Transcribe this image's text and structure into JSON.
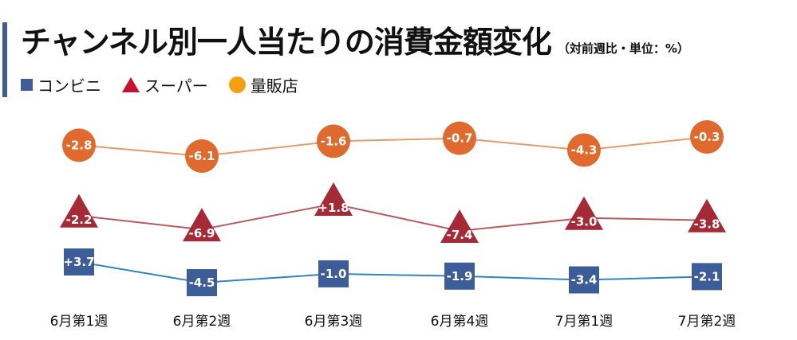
{
  "header": {
    "title": "チャンネル別一人当たりの消費金額変化",
    "note": "（対前週比・単位：%）"
  },
  "colors": {
    "accent_bar": "#3f5c93"
  },
  "chart_data": {
    "type": "line",
    "categories": [
      "6月第1週",
      "6月第2週",
      "6月第3週",
      "6月第4週",
      "7月第1週",
      "7月第2週"
    ],
    "series": [
      {
        "name": "量販店",
        "marker": "circle",
        "marker_color": "#e06a2e",
        "legend_color": "#f5a00f",
        "line_color": "#e79b6a",
        "values": [
          -2.8,
          -6.1,
          -1.6,
          -0.7,
          -4.3,
          -0.3
        ],
        "labels": [
          "-2.8",
          "-6.1",
          "-1.6",
          "-0.7",
          "-4.3",
          "-0.3"
        ]
      },
      {
        "name": "スーパー",
        "marker": "triangle",
        "marker_color": "#a52a35",
        "legend_color": "#c8102e",
        "line_color": "#b85a5f",
        "values": [
          -2.2,
          -6.9,
          1.8,
          -7.4,
          -3.0,
          -3.8
        ],
        "labels": [
          "-2.2",
          "-6.9",
          "+1.8",
          "-7.4",
          "-3.0",
          "-3.8"
        ]
      },
      {
        "name": "コンビニ",
        "marker": "square",
        "marker_color": "#3d5d98",
        "legend_color": "#3d5d98",
        "line_color": "#2e86c1",
        "values": [
          3.7,
          -4.5,
          -1.0,
          -1.9,
          -3.4,
          -2.1
        ],
        "labels": [
          "+3.7",
          "-4.5",
          "-1.0",
          "-1.9",
          "-3.4",
          "-2.1"
        ]
      }
    ]
  }
}
